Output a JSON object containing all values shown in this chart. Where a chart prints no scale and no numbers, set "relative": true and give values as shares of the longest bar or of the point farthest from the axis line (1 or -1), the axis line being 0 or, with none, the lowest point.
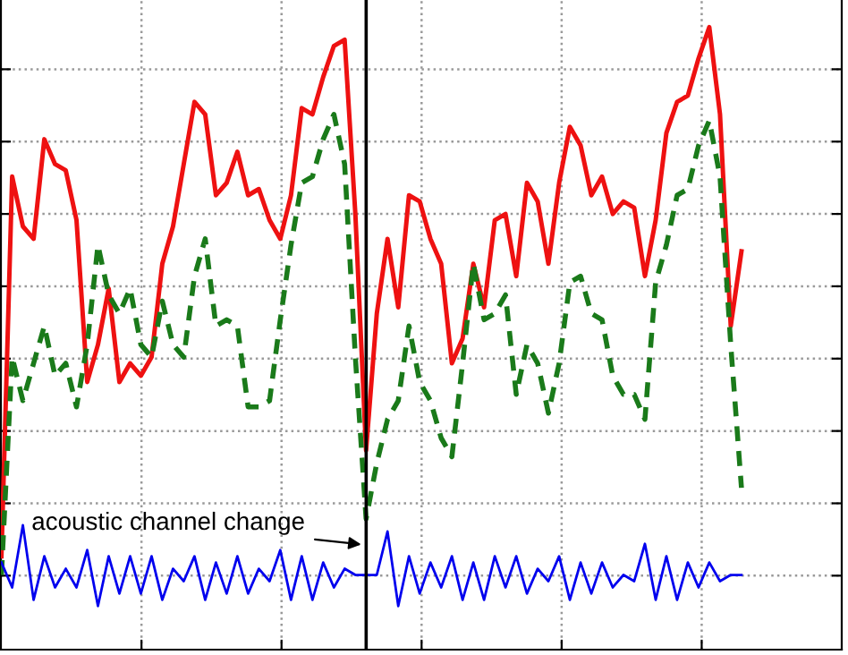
{
  "chart_data": {
    "type": "line",
    "relative": true,
    "grid": true,
    "categories": [
      null,
      null,
      null,
      null,
      null,
      null,
      null,
      null,
      null,
      null,
      null,
      null,
      null,
      null,
      null,
      null,
      null,
      null,
      null,
      null,
      null,
      null,
      null,
      null,
      null,
      null,
      null,
      null,
      null,
      null,
      null,
      null,
      null,
      null,
      null,
      null,
      null,
      null,
      null,
      null,
      null,
      null,
      null,
      null,
      null,
      null,
      null,
      null,
      null,
      null,
      null,
      null,
      null,
      null,
      null,
      null,
      null,
      null,
      null,
      null,
      null,
      null,
      null,
      null,
      null,
      null,
      null,
      null,
      null,
      null,
      null,
      null,
      null,
      null,
      null,
      null,
      null,
      null,
      null
    ],
    "series": [
      {
        "color": "#ee1111",
        "line_style": "solid",
        "values": [
          0.15,
          0.76,
          0.68,
          0.66,
          0.82,
          0.78,
          0.77,
          0.69,
          0.43,
          0.49,
          0.58,
          0.43,
          0.46,
          0.44,
          0.47,
          0.62,
          0.68,
          0.78,
          0.88,
          0.86,
          0.73,
          0.75,
          0.8,
          0.73,
          0.74,
          0.69,
          0.66,
          0.73,
          0.87,
          0.86,
          0.92,
          0.97,
          0.98,
          0.7,
          0.32,
          0.54,
          0.66,
          0.55,
          0.73,
          0.72,
          0.66,
          0.62,
          0.46,
          0.5,
          0.62,
          0.55,
          0.69,
          0.7,
          0.6,
          0.75,
          0.72,
          0.62,
          0.75,
          0.84,
          0.81,
          0.73,
          0.76,
          0.7,
          0.72,
          0.71,
          0.6,
          0.69,
          0.83,
          0.88,
          0.89,
          0.95,
          1.0,
          0.86,
          0.52,
          0.64,
          null,
          null,
          null,
          null,
          null,
          null,
          null,
          null,
          null
        ]
      },
      {
        "color": "#1a7a1a",
        "line_style": "dashed",
        "values": [
          0.12,
          0.47,
          0.4,
          0.46,
          0.52,
          0.44,
          0.46,
          0.39,
          0.49,
          0.65,
          0.57,
          0.54,
          0.58,
          0.49,
          0.47,
          0.56,
          0.49,
          0.47,
          0.6,
          0.66,
          0.52,
          0.53,
          0.52,
          0.39,
          0.39,
          0.4,
          0.53,
          0.65,
          0.75,
          0.76,
          0.82,
          0.86,
          0.78,
          0.47,
          0.21,
          0.3,
          0.37,
          0.4,
          0.52,
          0.43,
          0.4,
          0.34,
          0.31,
          0.46,
          0.62,
          0.53,
          0.54,
          0.57,
          0.41,
          0.49,
          0.46,
          0.38,
          0.46,
          0.59,
          0.6,
          0.54,
          0.53,
          0.44,
          0.41,
          0.41,
          0.37,
          0.59,
          0.65,
          0.73,
          0.74,
          0.81,
          0.85,
          0.76,
          0.49,
          0.26,
          null,
          null,
          null,
          null,
          null,
          null,
          null,
          null,
          null
        ]
      },
      {
        "color": "#0000ee",
        "line_style": "solid",
        "values": [
          0.14,
          0.1,
          0.2,
          0.08,
          0.15,
          0.1,
          0.13,
          0.1,
          0.16,
          0.07,
          0.15,
          0.09,
          0.15,
          0.09,
          0.15,
          0.08,
          0.13,
          0.11,
          0.15,
          0.08,
          0.14,
          0.09,
          0.15,
          0.09,
          0.13,
          0.11,
          0.16,
          0.08,
          0.15,
          0.08,
          0.14,
          0.1,
          0.13,
          0.12,
          0.12,
          0.12,
          0.19,
          0.07,
          0.15,
          0.09,
          0.14,
          0.1,
          0.15,
          0.08,
          0.14,
          0.08,
          0.15,
          0.1,
          0.15,
          0.09,
          0.13,
          0.11,
          0.15,
          0.08,
          0.14,
          0.09,
          0.14,
          0.1,
          0.12,
          0.11,
          0.17,
          0.08,
          0.15,
          0.08,
          0.14,
          0.1,
          0.14,
          0.11,
          0.12,
          0.12,
          null,
          null,
          null,
          null,
          null,
          null,
          null,
          null,
          null
        ]
      }
    ],
    "annotations": [
      "acoustic channel change"
    ]
  }
}
